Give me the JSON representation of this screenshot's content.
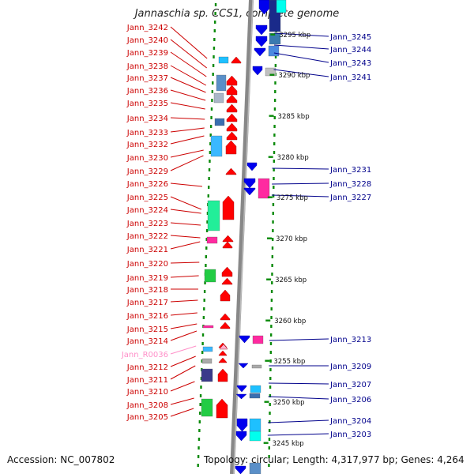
{
  "title": "Jannaschia sp. CCS1, complete genome",
  "footer": {
    "accession": "Accession: NC_007802",
    "info": "Topology: circular; Length: 4,317,977 bp; Genes: 4,264"
  },
  "colors": {
    "left_label": "#cc0000",
    "right_label": "#00008b",
    "rna_label": "#ff8fc8",
    "forward_arrow": "#ff0000",
    "reverse_arrow": "#0000ee",
    "tick": "#0a8a0a"
  },
  "scale_labels": [
    "3295 kbp",
    "3290 kbp",
    "3285 kbp",
    "3280 kbp",
    "3275 kbp",
    "3270 kbp",
    "3265 kbp",
    "3260 kbp",
    "3255 kbp",
    "3250 kbp",
    "3245 kbp"
  ],
  "left_genes": [
    "Jann_3242",
    "Jann_3240",
    "Jann_3239",
    "Jann_3238",
    "Jann_3237",
    "Jann_3236",
    "Jann_3235",
    "Jann_3234",
    "Jann_3233",
    "Jann_3232",
    "Jann_3230",
    "Jann_3229",
    "Jann_3226",
    "Jann_3225",
    "Jann_3224",
    "Jann_3223",
    "Jann_3222",
    "Jann_3221",
    "Jann_3220",
    "Jann_3219",
    "Jann_3218",
    "Jann_3217",
    "Jann_3216",
    "Jann_3215",
    "Jann_3214",
    "Jann_R0036",
    "Jann_3212",
    "Jann_3211",
    "Jann_3210",
    "Jann_3208",
    "Jann_3205"
  ],
  "right_genes": [
    "Jann_3245",
    "Jann_3244",
    "Jann_3243",
    "Jann_3241",
    "Jann_3231",
    "Jann_3228",
    "Jann_3227",
    "Jann_3213",
    "Jann_3209",
    "Jann_3207",
    "Jann_3206",
    "Jann_3204",
    "Jann_3203"
  ]
}
